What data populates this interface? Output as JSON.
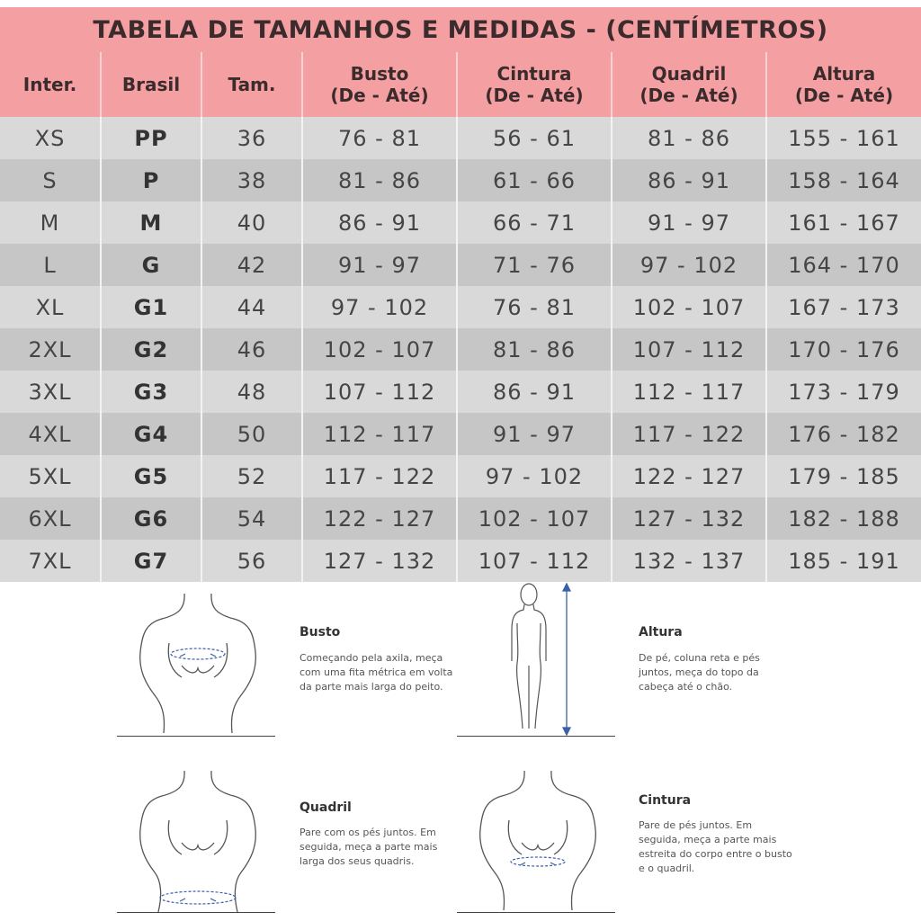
{
  "title": "TABELA DE TAMANHOS E MEDIDAS - (CENTÍMETROS)",
  "columns": [
    {
      "line1": "Inter.",
      "line2": ""
    },
    {
      "line1": "Brasil",
      "line2": ""
    },
    {
      "line1": "Tam.",
      "line2": ""
    },
    {
      "line1": "Busto",
      "line2": "(De - Até)"
    },
    {
      "line1": "Cintura",
      "line2": "(De - Até)"
    },
    {
      "line1": "Quadril",
      "line2": "(De - Até)"
    },
    {
      "line1": "Altura",
      "line2": "(De - Até)"
    }
  ],
  "rows": [
    [
      "XS",
      "PP",
      "36",
      "76 - 81",
      "56 - 61",
      "81 - 86",
      "155 - 161"
    ],
    [
      "S",
      "P",
      "38",
      "81 - 86",
      "61 - 66",
      "86 - 91",
      "158 - 164"
    ],
    [
      "M",
      "M",
      "40",
      "86 - 91",
      "66 - 71",
      "91 - 97",
      "161 - 167"
    ],
    [
      "L",
      "G",
      "42",
      "91 - 97",
      "71 - 76",
      "97 - 102",
      "164 - 170"
    ],
    [
      "XL",
      "G1",
      "44",
      "97 - 102",
      "76 - 81",
      "102 - 107",
      "167 - 173"
    ],
    [
      "2XL",
      "G2",
      "46",
      "102 - 107",
      "81 - 86",
      "107 - 112",
      "170 - 176"
    ],
    [
      "3XL",
      "G3",
      "48",
      "107 - 112",
      "86 - 91",
      "112 - 117",
      "173 - 179"
    ],
    [
      "4XL",
      "G4",
      "50",
      "112 - 117",
      "91 - 97",
      "117 - 122",
      "176 - 182"
    ],
    [
      "5XL",
      "G5",
      "52",
      "117 - 122",
      "97 - 102",
      "122 - 127",
      "179 - 185"
    ],
    [
      "6XL",
      "G6",
      "54",
      "122 - 127",
      "102 - 107",
      "127 - 132",
      "182 - 188"
    ],
    [
      "7XL",
      "G7",
      "56",
      "127 - 132",
      "107 - 112",
      "132 - 137",
      "185 - 191"
    ]
  ],
  "guides": {
    "busto": {
      "title": "Busto",
      "lines": [
        "Começando pela axila, meça",
        "com uma fita métrica em volta",
        "da parte mais larga do peito."
      ]
    },
    "altura": {
      "title": "Altura",
      "lines": [
        "De pé, coluna reta e pés",
        "juntos, meça do topo da",
        "cabeça até o chão."
      ]
    },
    "quadril": {
      "title": "Quadril",
      "lines": [
        "Pare com os pés juntos. Em",
        "seguida, meça a parte mais",
        "larga dos seus quadris."
      ]
    },
    "cintura": {
      "title": "Cintura",
      "lines": [
        "Pare de pés juntos. Em",
        "seguida, meça a parte mais",
        "estreita do corpo entre o busto",
        "e o quadril."
      ]
    }
  },
  "colors": {
    "header_pink": "#f4a0a3",
    "row_light": "#d9d9d9",
    "row_dark": "#c6c6c6",
    "measure_line": "#3b5fa8"
  },
  "icons": [
    "busto-figure-icon",
    "altura-figure-icon",
    "quadril-figure-icon",
    "cintura-figure-icon",
    "tape-measure-icon"
  ]
}
